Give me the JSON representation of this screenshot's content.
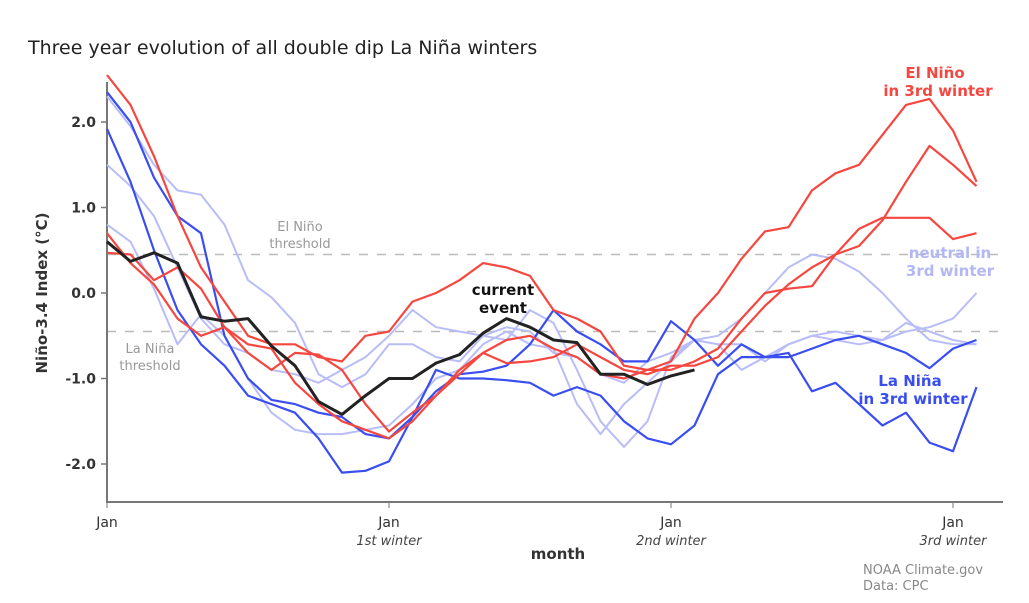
{
  "chart_data": {
    "type": "line",
    "title": "Three year evolution of all double dip La Niña winters",
    "xlabel": "month",
    "ylabel": "Niño-3.4 Index (°C)",
    "ylim": [
      -2.5,
      2.6
    ],
    "xlim_months": [
      0,
      38
    ],
    "yticks": [
      "2.0",
      "1.0",
      "0.0",
      "-1.0",
      "-2.0"
    ],
    "ytick_values": [
      2,
      1,
      0,
      -1,
      -2
    ],
    "xticks": [
      {
        "month": 0,
        "label": "Jan",
        "sub": ""
      },
      {
        "month": 12,
        "label": "Jan",
        "sub": "1st winter"
      },
      {
        "month": 24,
        "label": "Jan",
        "sub": "2nd winter"
      },
      {
        "month": 36,
        "label": "Jan",
        "sub": "3rd winter"
      }
    ],
    "thresholds": [
      {
        "value": 0.45,
        "label_line1": "El Niño",
        "label_line2": "threshold"
      },
      {
        "value": -0.45,
        "label_line1": "La Niña",
        "label_line2": "threshold"
      }
    ],
    "grid": false,
    "colors": {
      "el_nino": "#f5473f",
      "la_nina": "#3a4ef0",
      "neutral": "#b9bdf7",
      "current": "#222222"
    },
    "series": [
      {
        "group": "neutral",
        "values": [
          2.3,
          1.95,
          1.5,
          1.2,
          1.15,
          0.8,
          0.15,
          -0.05,
          -0.35,
          -0.95,
          -1.1,
          -0.95,
          -0.6,
          -0.6,
          -0.75,
          -0.8,
          -0.5,
          -0.4,
          -0.45,
          -0.7,
          -0.75,
          -0.95,
          -1.05,
          -0.8,
          -0.7,
          -0.55,
          -0.5,
          -0.3,
          0.0,
          0.3,
          0.45,
          0.4,
          0.25,
          0.0,
          -0.3,
          -0.55,
          -0.6,
          -0.6
        ]
      },
      {
        "group": "neutral",
        "values": [
          1.5,
          1.25,
          0.9,
          0.3,
          -0.3,
          -0.6,
          -0.7,
          -0.9,
          -0.95,
          -1.05,
          -0.9,
          -0.75,
          -0.5,
          -0.2,
          -0.4,
          -0.45,
          -0.5,
          -0.55,
          -0.2,
          -0.35,
          -0.9,
          -1.5,
          -1.8,
          -1.5,
          -0.75,
          -0.55,
          -0.6,
          -0.6,
          -0.8,
          -0.6,
          -0.5,
          -0.55,
          -0.6,
          -0.55,
          -0.45,
          -0.4,
          -0.3,
          0.0
        ]
      },
      {
        "group": "neutral",
        "values": [
          0.8,
          0.6,
          0.05,
          -0.6,
          -0.25,
          -0.5,
          -1.0,
          -1.4,
          -1.6,
          -1.65,
          -1.65,
          -1.6,
          -1.55,
          -1.3,
          -1.0,
          -0.9,
          -0.6,
          -0.45,
          -0.6,
          -0.65,
          -1.3,
          -1.65,
          -1.3,
          -1.05,
          -0.8,
          -0.55,
          -0.6,
          -0.9,
          -0.75,
          -0.6,
          -0.5,
          -0.45,
          -0.5,
          -0.55,
          -0.35,
          -0.45,
          -0.55,
          -0.6
        ]
      },
      {
        "group": "la_nina",
        "values": [
          2.35,
          2.0,
          1.35,
          0.9,
          0.7,
          -0.5,
          -1.0,
          -1.25,
          -1.3,
          -1.4,
          -1.45,
          -1.65,
          -1.7,
          -1.45,
          -1.15,
          -0.95,
          -0.92,
          -0.85,
          -0.6,
          -0.2,
          -0.45,
          -0.6,
          -0.8,
          -0.8,
          -0.33,
          -0.55,
          -0.85,
          -0.6,
          -0.75,
          -0.75,
          -0.65,
          -0.55,
          -0.5,
          -0.6,
          -0.7,
          -0.88,
          -0.65,
          -0.55
        ]
      },
      {
        "group": "la_nina",
        "values": [
          1.92,
          1.3,
          0.5,
          -0.2,
          -0.6,
          -0.85,
          -1.2,
          -1.3,
          -1.4,
          -1.7,
          -2.1,
          -2.08,
          -1.97,
          -1.45,
          -0.9,
          -1.0,
          -1.0,
          -1.02,
          -1.05,
          -1.2,
          -1.1,
          -1.2,
          -1.5,
          -1.7,
          -1.77,
          -1.55,
          -0.95,
          -0.75,
          -0.75,
          -0.7,
          -1.15,
          -1.05,
          -1.3,
          -1.55,
          -1.4,
          -1.75,
          -1.85,
          -1.1
        ]
      },
      {
        "group": "el_nino",
        "values": [
          2.55,
          2.2,
          1.6,
          0.9,
          0.3,
          -0.1,
          -0.5,
          -0.6,
          -0.6,
          -0.75,
          -0.8,
          -0.5,
          -0.45,
          -0.1,
          0.0,
          0.15,
          0.35,
          0.3,
          0.2,
          -0.2,
          -0.3,
          -0.45,
          -0.85,
          -0.9,
          -0.8,
          -0.3,
          0.0,
          0.4,
          0.72,
          0.77,
          1.2,
          1.4,
          1.5,
          1.85,
          2.2,
          2.27,
          1.9,
          1.3
        ]
      },
      {
        "group": "el_nino",
        "values": [
          0.7,
          0.35,
          0.1,
          -0.3,
          -0.5,
          -0.4,
          -0.6,
          -0.65,
          -1.05,
          -1.3,
          -1.5,
          -1.6,
          -1.7,
          -1.5,
          -1.2,
          -0.9,
          -0.7,
          -0.82,
          -0.8,
          -0.75,
          -0.6,
          -0.75,
          -0.9,
          -0.95,
          -0.85,
          -0.85,
          -0.75,
          -0.45,
          -0.15,
          0.1,
          0.3,
          0.45,
          0.55,
          0.85,
          1.3,
          1.72,
          1.5,
          1.25
        ]
      },
      {
        "group": "el_nino",
        "values": [
          0.47,
          0.45,
          0.15,
          0.3,
          0.05,
          -0.4,
          -0.7,
          -0.9,
          -0.7,
          -0.72,
          -0.9,
          -1.3,
          -1.62,
          -1.4,
          -1.2,
          -0.95,
          -0.7,
          -0.55,
          -0.5,
          -0.65,
          -0.75,
          -0.95,
          -1.0,
          -0.9,
          -0.9,
          -0.8,
          -0.65,
          -0.3,
          0.0,
          0.05,
          0.08,
          0.45,
          0.75,
          0.88,
          0.88,
          0.88,
          0.63,
          0.7
        ]
      },
      {
        "group": "current",
        "values": [
          0.6,
          0.37,
          0.47,
          0.35,
          -0.28,
          -0.33,
          -0.3,
          -0.62,
          -0.85,
          -1.27,
          -1.42,
          -1.2,
          -1.0,
          -1.0,
          -0.82,
          -0.72,
          -0.47,
          -0.3,
          -0.4,
          -0.55,
          -0.58,
          -0.95,
          -0.95,
          -1.07,
          -0.97,
          -0.9
        ]
      }
    ],
    "annotations": {
      "current_1": "current",
      "current_2": "event",
      "el_nino_1": "El Niño",
      "el_nino_2": "in 3rd winter",
      "neutral_1": "neutral in",
      "neutral_2": "3rd winter",
      "la_nina_1": "La Niña",
      "la_nina_2": "in 3rd winter"
    },
    "source_1": "NOAA Climate.gov",
    "source_2": "Data: CPC"
  }
}
